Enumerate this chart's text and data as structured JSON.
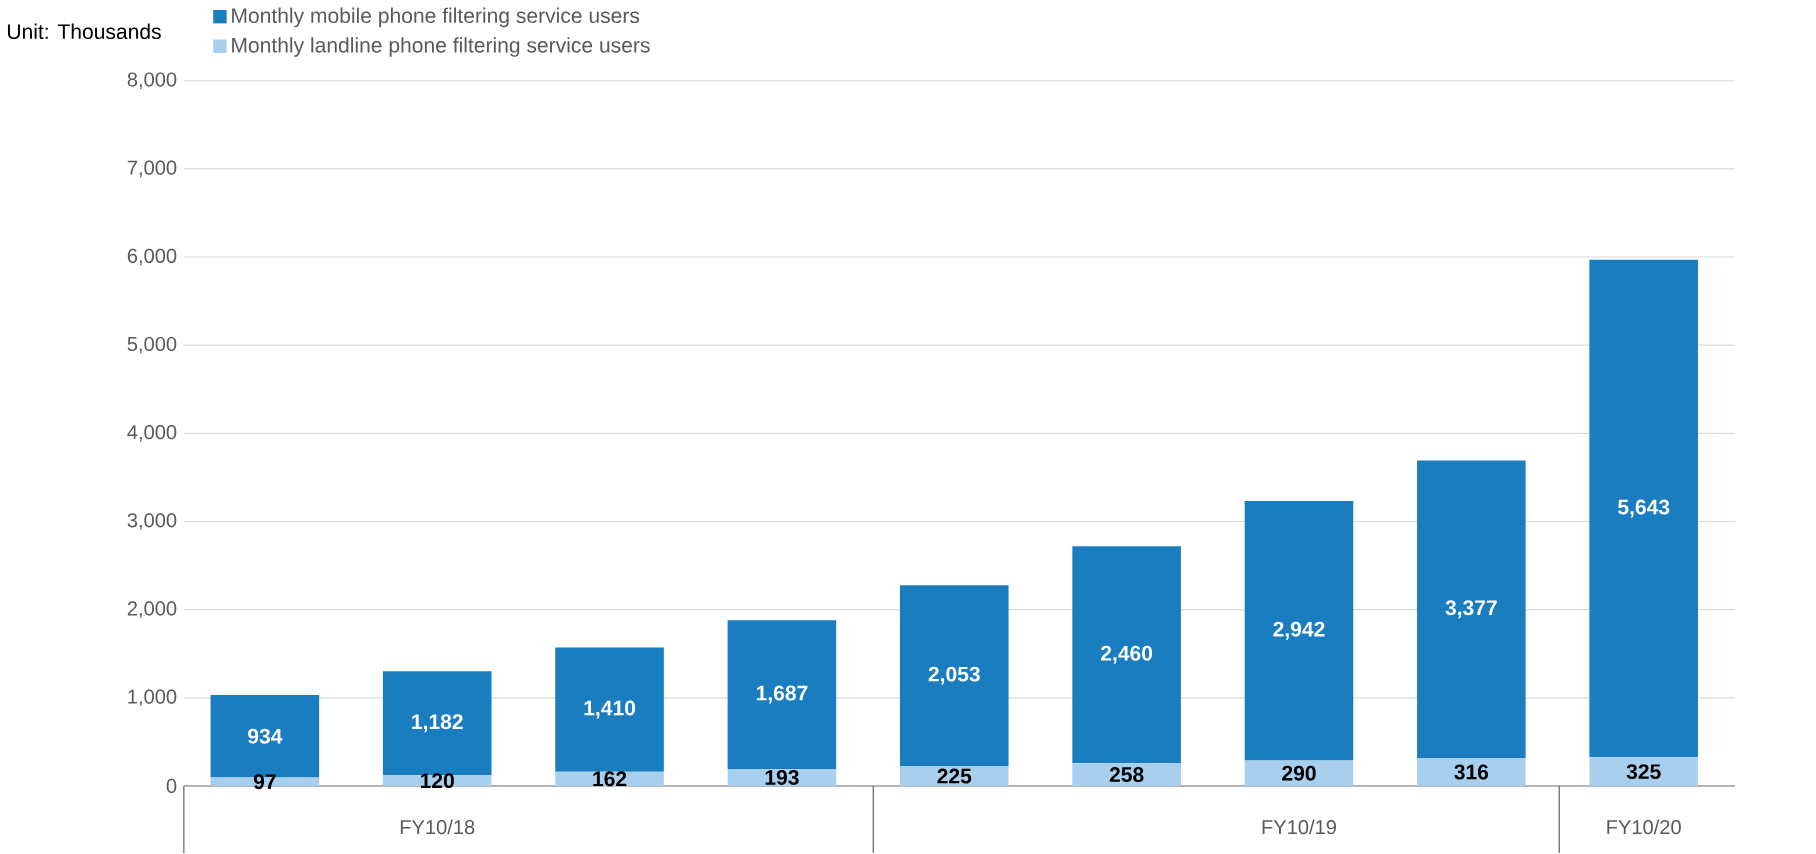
{
  "chart_data": {
    "type": "bar",
    "stacked": true,
    "ylabel": "Unit: Thousands",
    "categories": [
      null,
      "FY10/18",
      null,
      null,
      null,
      null,
      "FY10/19",
      null,
      "FY10/20"
    ],
    "series": [
      {
        "name": "Monthly landline phone filtering service users",
        "color": "#a9cfee",
        "values": [
          97,
          120,
          162,
          193,
          225,
          258,
          290,
          316,
          325
        ],
        "value_labels": [
          "97",
          "120",
          "162",
          "193",
          "225",
          "258",
          "290",
          "316",
          "325"
        ]
      },
      {
        "name": "Monthly mobile phone filtering service users",
        "color": "#1a7dbf",
        "values": [
          934,
          1182,
          1410,
          1687,
          2053,
          2460,
          2942,
          3377,
          5643
        ],
        "value_labels": [
          "934",
          "1,182",
          "1,410",
          "1,687",
          "2,053",
          "2,460",
          "2,942",
          "3,377",
          "5,643"
        ]
      }
    ],
    "ylim": [
      0,
      8000
    ],
    "yticks": [
      0,
      {
        "value": 1000,
        "label": "1,000"
      },
      {
        "value": 2000,
        "label": "2,000"
      },
      {
        "value": 3000,
        "label": "3,000"
      },
      {
        "value": 4000,
        "label": "4,000"
      },
      {
        "value": 5000,
        "label": "5,000"
      },
      {
        "value": 6000,
        "label": "6,000"
      },
      {
        "value": 7000,
        "label": "7,000"
      },
      {
        "value": 8000,
        "label": "8,000"
      }
    ],
    "grid": "y",
    "legend": "top left"
  }
}
